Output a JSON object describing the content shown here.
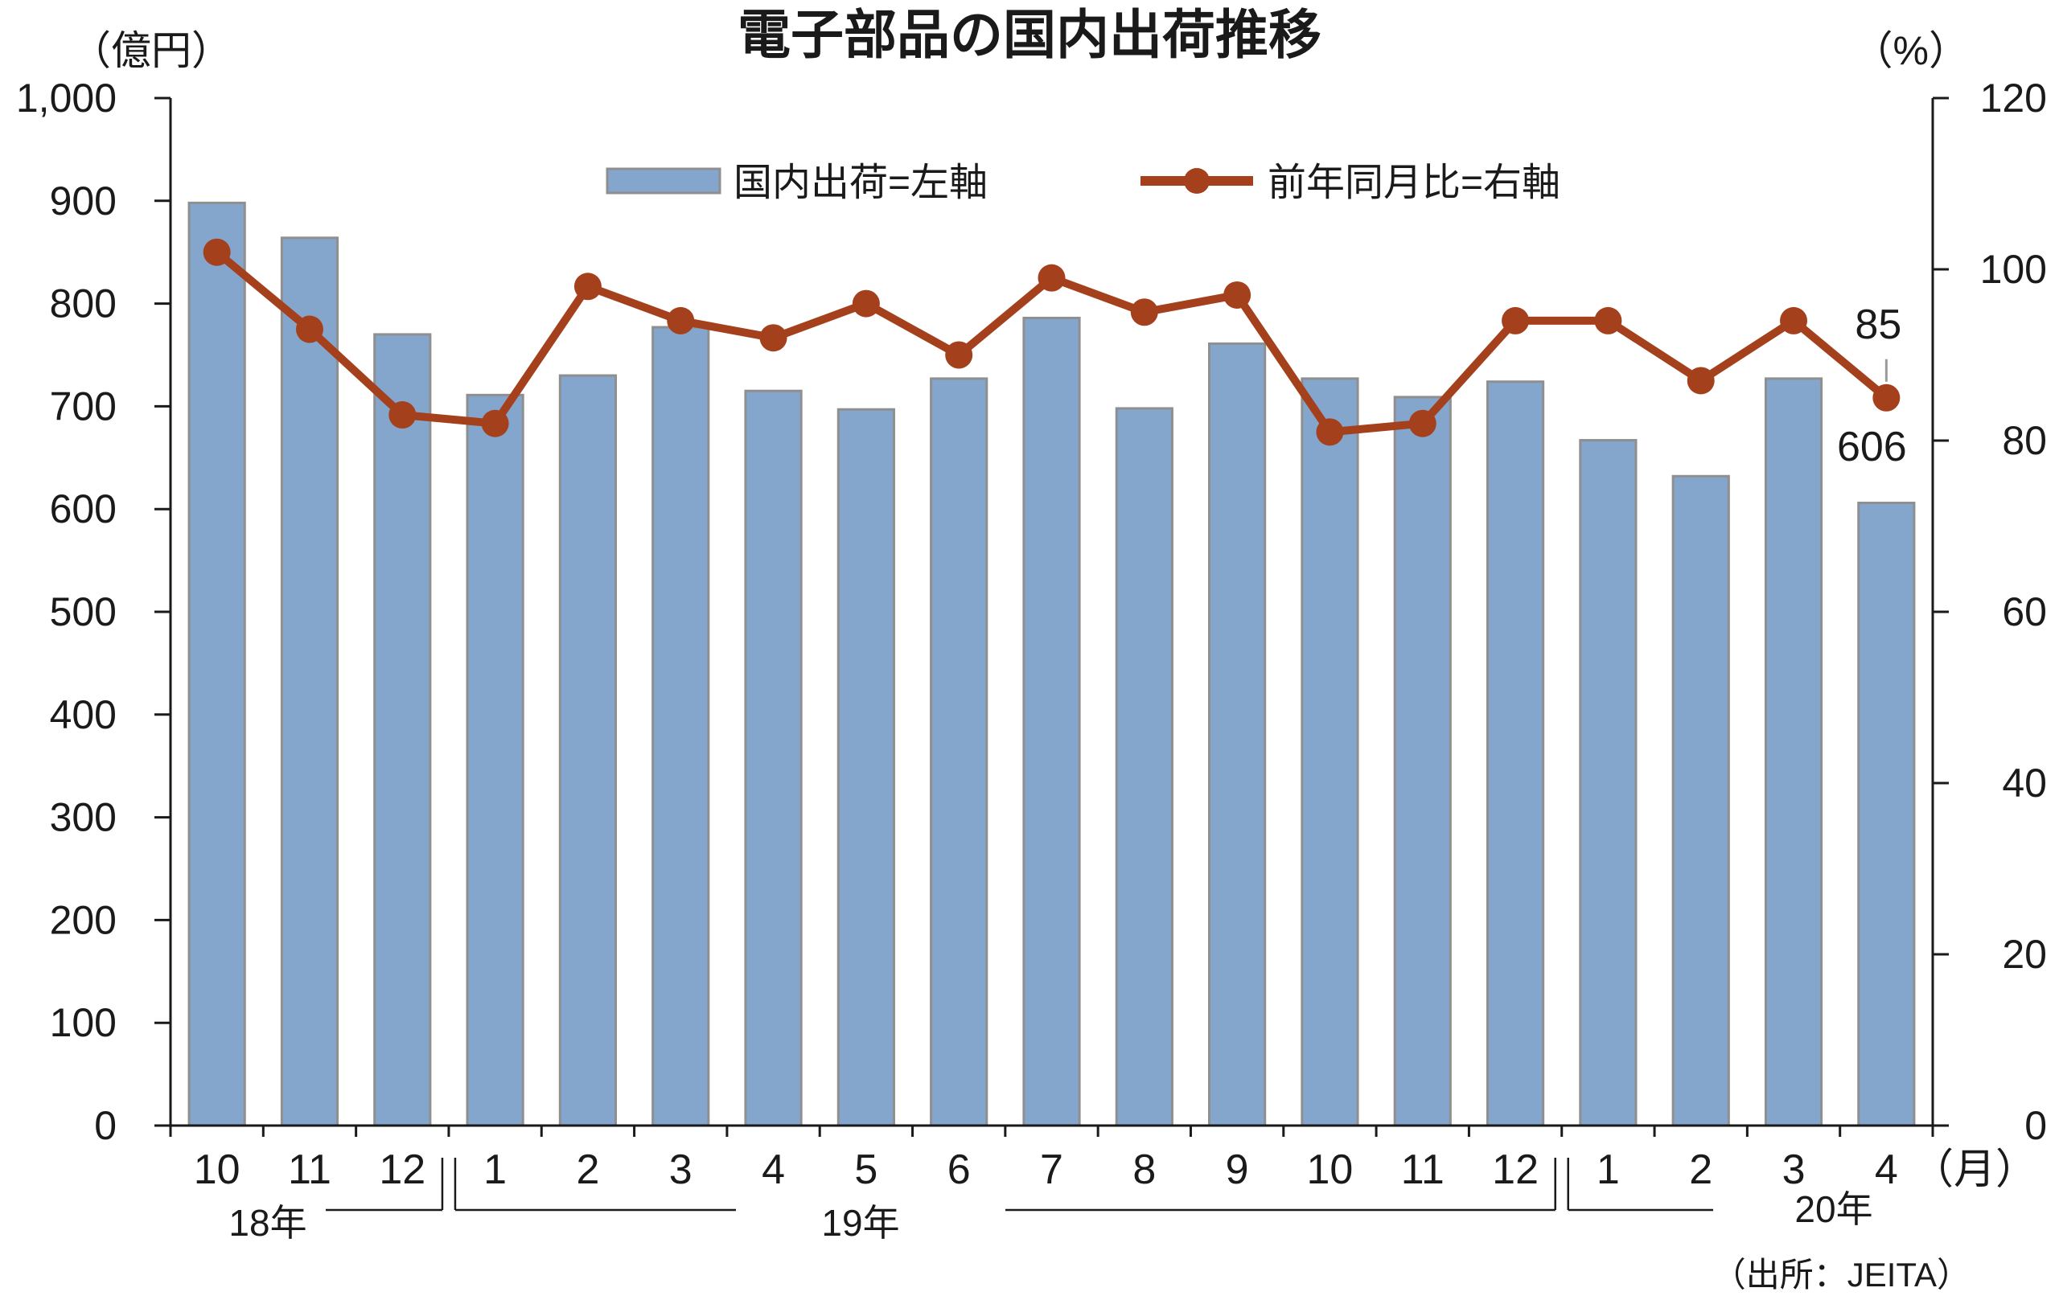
{
  "chart_data": {
    "type": "bar",
    "title": "電子部品の国内出荷推移",
    "left_unit": "（億円）",
    "right_unit": "（%）",
    "x_unit": "（月）",
    "categories": [
      "10",
      "11",
      "12",
      "1",
      "2",
      "3",
      "4",
      "5",
      "6",
      "7",
      "8",
      "9",
      "10",
      "11",
      "12",
      "1",
      "2",
      "3",
      "4"
    ],
    "years": [
      {
        "label": "18年",
        "from": 0,
        "to": 2
      },
      {
        "label": "19年",
        "from": 3,
        "to": 14
      },
      {
        "label": "20年",
        "from": 15,
        "to": 18
      }
    ],
    "series": [
      {
        "name": "国内出荷=左軸",
        "type": "bar",
        "axis": "left",
        "color": "#85a6cc",
        "values": [
          898,
          864,
          770,
          711,
          730,
          777,
          715,
          697,
          727,
          786,
          698,
          761,
          727,
          709,
          724,
          667,
          632,
          727,
          606
        ]
      },
      {
        "name": "前年同月比=右軸",
        "type": "line",
        "axis": "right",
        "color": "#a5401c",
        "values": [
          102,
          93,
          83,
          82,
          98,
          94,
          92,
          96,
          90,
          99,
          95,
          97,
          81,
          82,
          94,
          94,
          87,
          94,
          85
        ]
      }
    ],
    "y_left": {
      "min": 0,
      "max": 1000,
      "step": 100,
      "ticks": [
        "0",
        "100",
        "200",
        "300",
        "400",
        "500",
        "600",
        "700",
        "800",
        "900",
        "1,000"
      ]
    },
    "y_right": {
      "min": 0,
      "max": 120,
      "step": 20,
      "ticks": [
        "0",
        "20",
        "40",
        "60",
        "80",
        "100",
        "120"
      ]
    },
    "annotations": {
      "bar_last": "606",
      "line_last": "85"
    },
    "source": "（出所：JEITA）",
    "grid": false,
    "legend": "top"
  }
}
